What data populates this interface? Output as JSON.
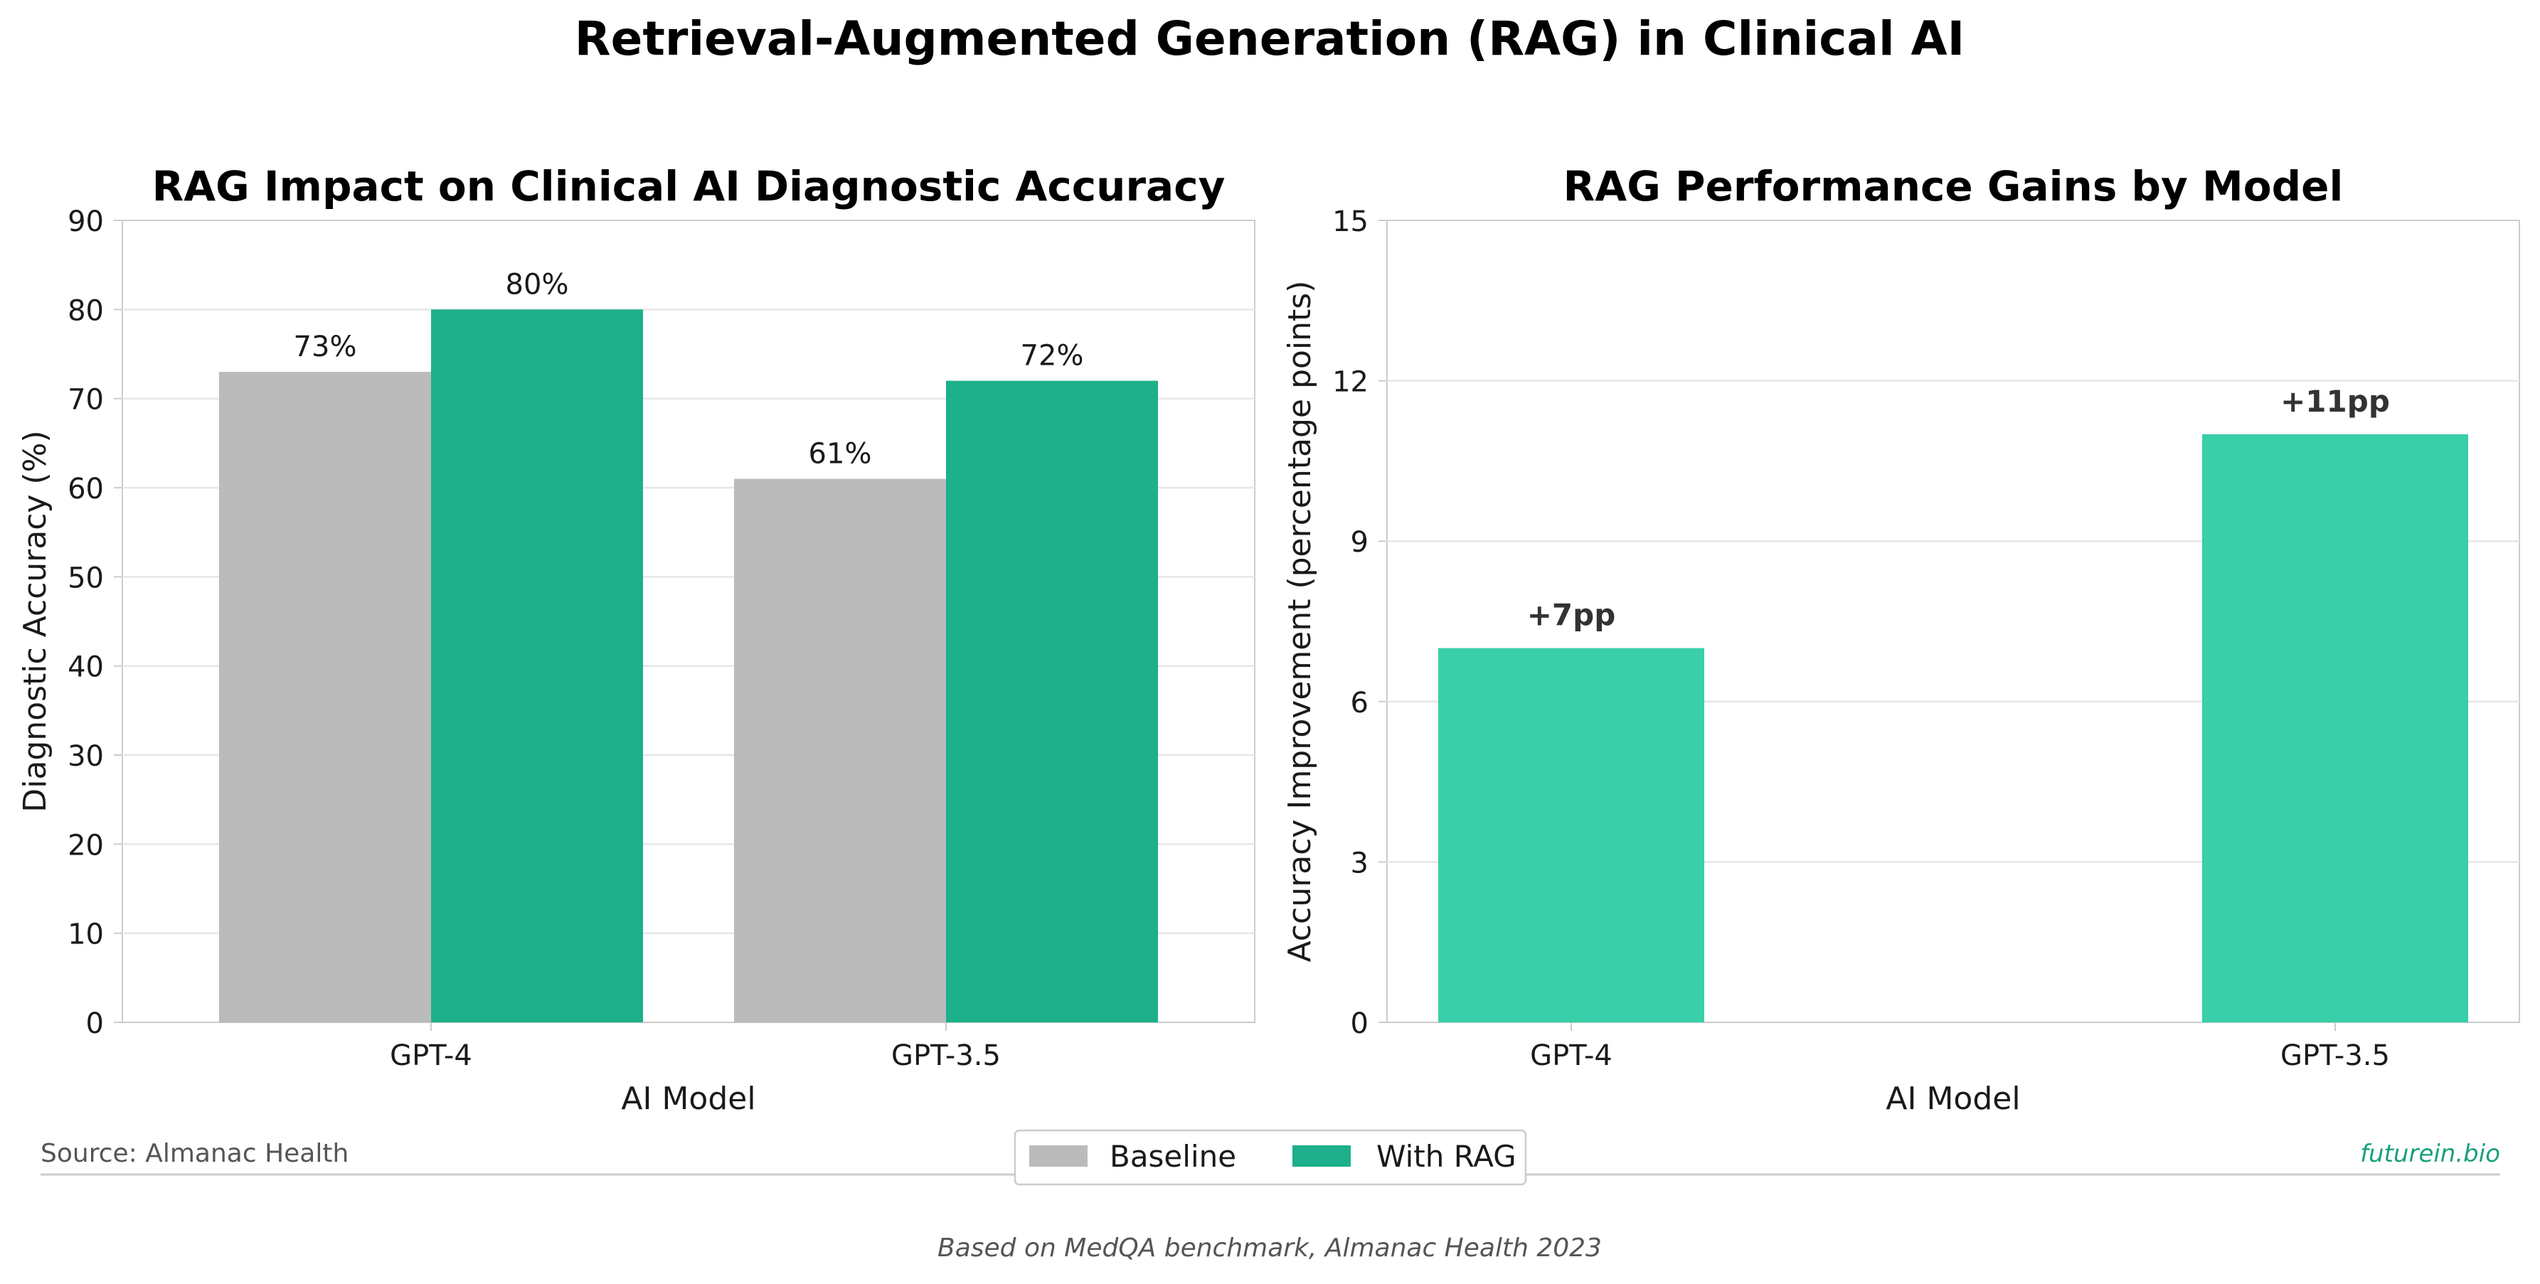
{
  "title": "Retrieval-Augmented Generation (RAG) in Clinical AI",
  "source_text": "Source: Almanac Health",
  "brand_text": "futurein.bio",
  "footnote": "Based on MedQA benchmark, Almanac Health 2023",
  "colors": {
    "baseline": "#bbbbbb",
    "with_rag": "#1db08a",
    "gain": "#38cfa9",
    "brand": "#1aa07c",
    "grid": "#e6e6e6",
    "axis": "#cccccc"
  },
  "legend": {
    "baseline_label": "Baseline",
    "rag_label": "With RAG",
    "placement": "lower-center"
  },
  "chart_data": [
    {
      "type": "bar",
      "title": "RAG Impact on Clinical AI Diagnostic Accuracy",
      "xlabel": "AI Model",
      "ylabel": "Diagnostic Accuracy (%)",
      "categories": [
        "GPT-4",
        "GPT-3.5"
      ],
      "series": [
        {
          "name": "Baseline",
          "values": [
            73,
            61
          ],
          "labels": [
            "73%",
            "61%"
          ]
        },
        {
          "name": "With RAG",
          "values": [
            80,
            72
          ],
          "labels": [
            "80%",
            "72%"
          ]
        }
      ],
      "ylim": [
        0,
        90
      ],
      "yticks": [
        0,
        10,
        20,
        30,
        40,
        50,
        60,
        70,
        80,
        90
      ],
      "grid": true
    },
    {
      "type": "bar",
      "title": "RAG Performance Gains by Model",
      "xlabel": "AI Model",
      "ylabel": "Accuracy Improvement (percentage points)",
      "categories": [
        "GPT-4",
        "GPT-3.5"
      ],
      "values": [
        7,
        11
      ],
      "labels": [
        "+7pp",
        "+11pp"
      ],
      "ylim": [
        0,
        15
      ],
      "yticks": [
        0,
        3,
        6,
        9,
        12,
        15
      ],
      "grid": true
    }
  ]
}
